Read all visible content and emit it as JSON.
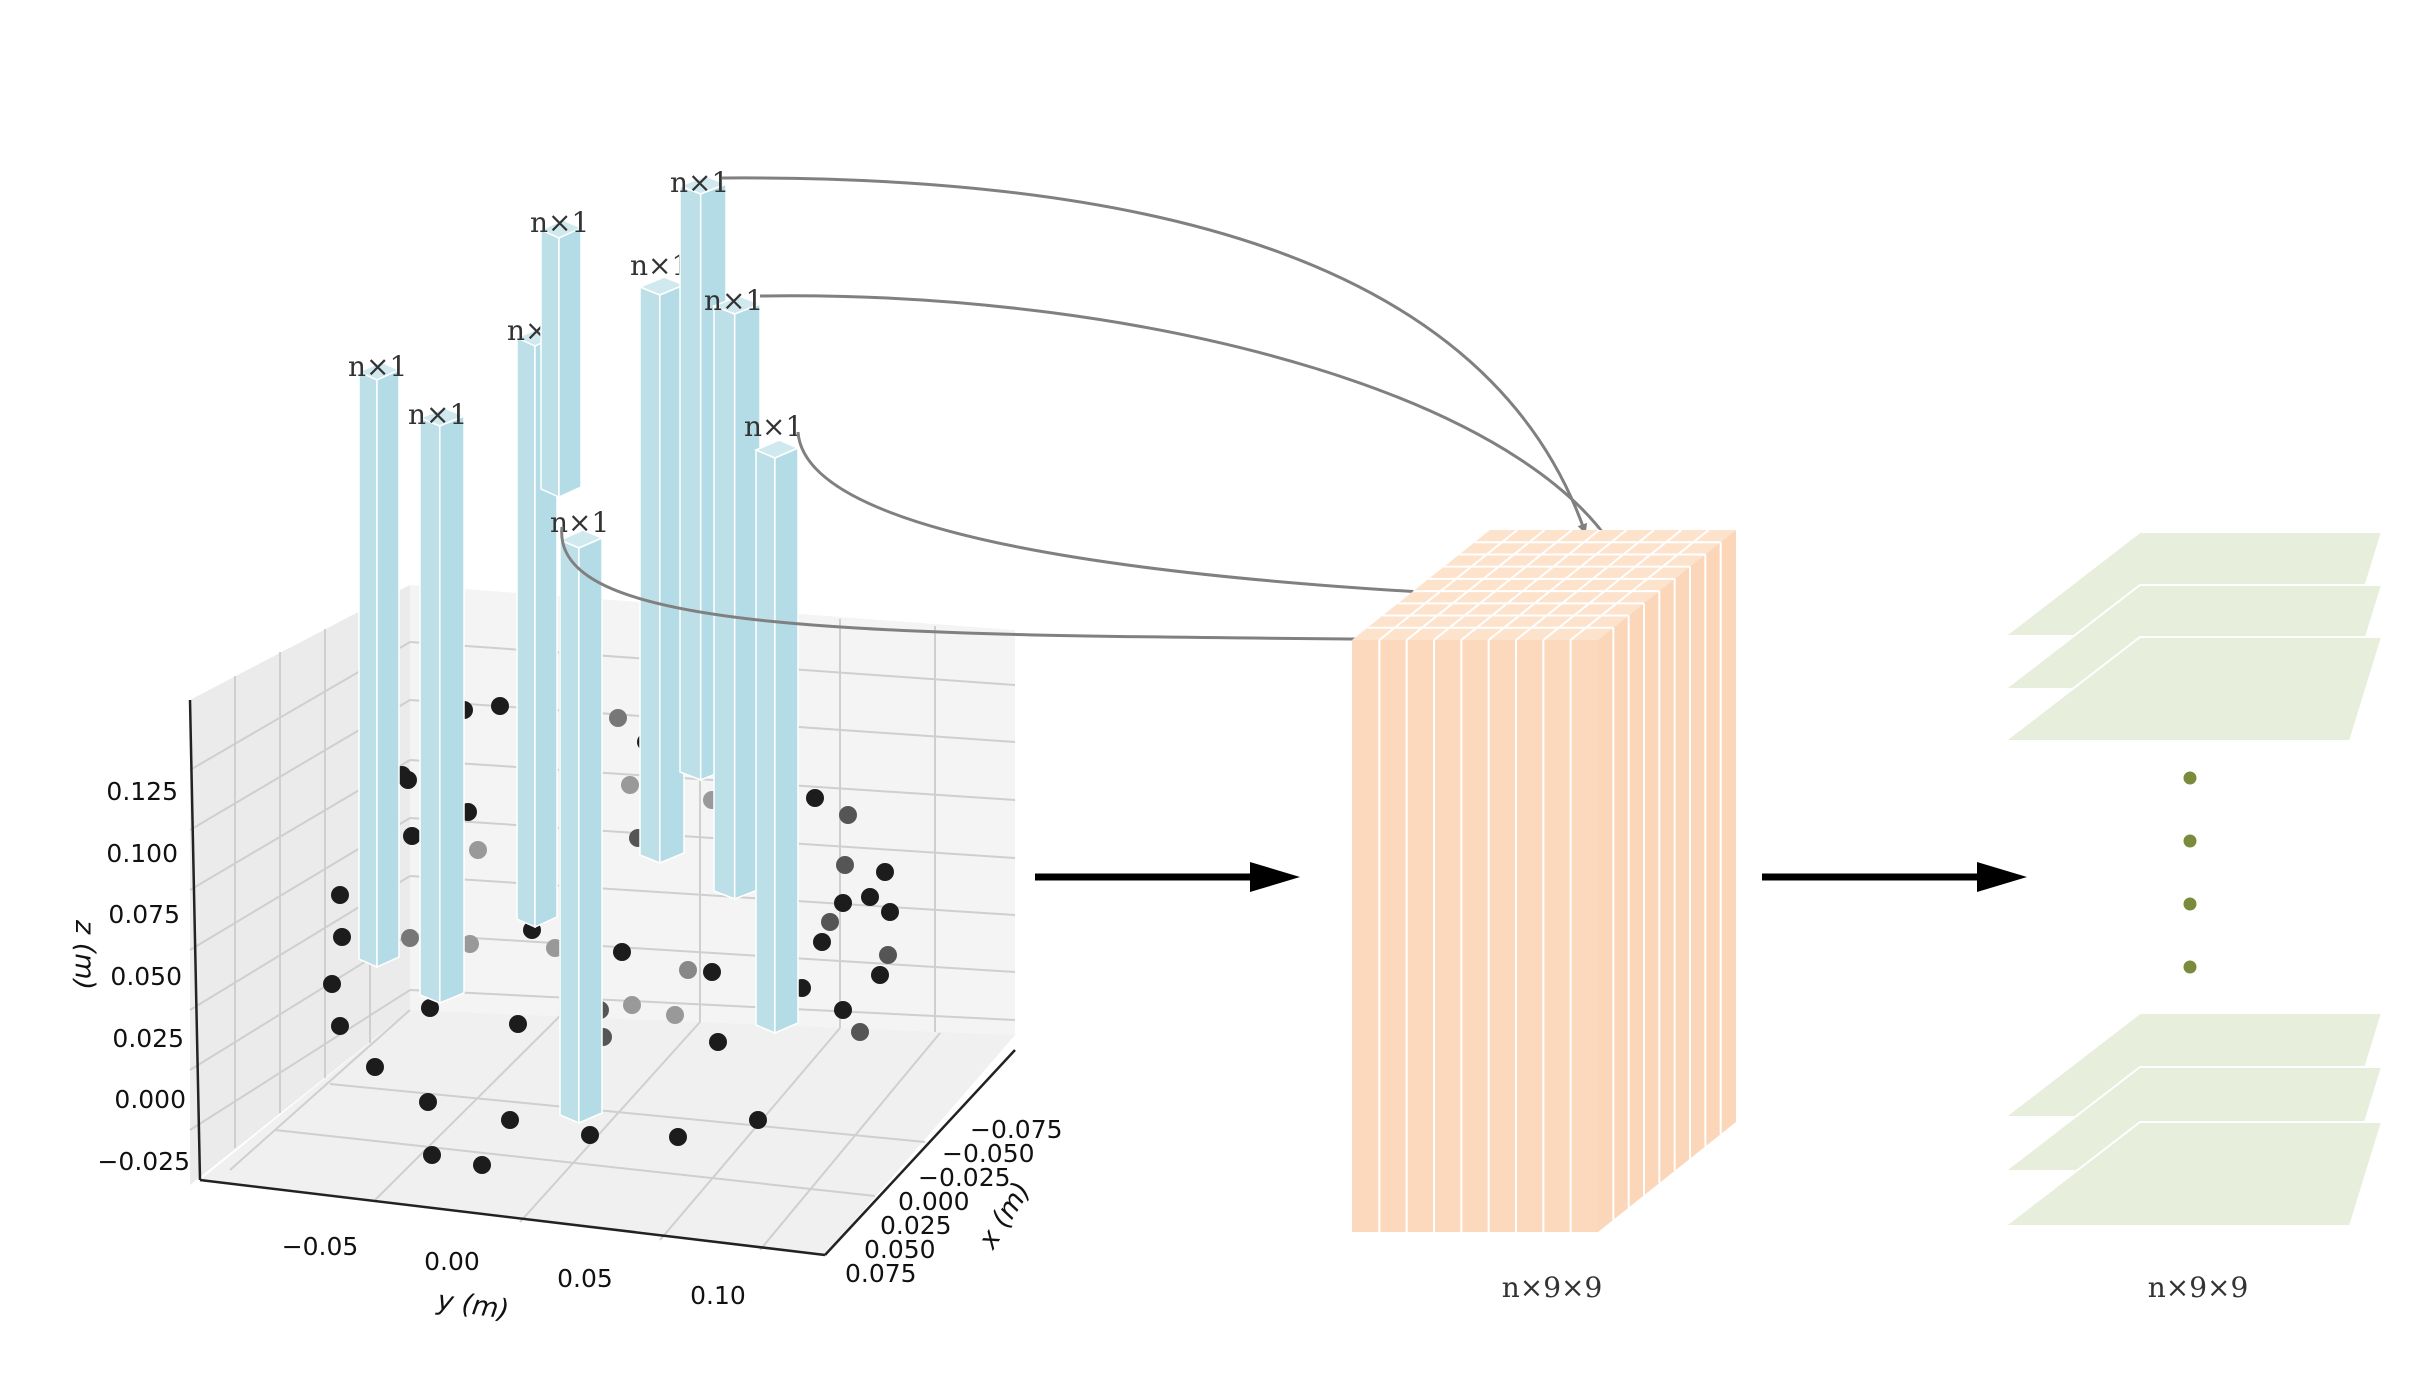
{
  "plot": {
    "y_ticks": [
      "−0.05",
      "0.00",
      "0.05",
      "0.10"
    ],
    "x_ticks": [
      "−0.075",
      "−0.050",
      "−0.025",
      "0.000",
      "0.025",
      "0.050",
      "0.075"
    ],
    "z_ticks": [
      "0.125",
      "0.100",
      "0.075",
      "0.050",
      "0.025",
      "0.000",
      "−0.025"
    ],
    "y_label": "y (m)",
    "x_label": "x (m)",
    "z_label": "z (m)"
  },
  "bar_label": "n×1",
  "tensor_label": "n×9×9",
  "stack_label": "n×9×9",
  "colors": {
    "bar": "#bde0e8",
    "tensor": "#fcd9bd",
    "layer": "#e7eedb",
    "dots": "#7a8c3c",
    "arrow_thin": "#808080",
    "arrow_thick": "#000000"
  }
}
